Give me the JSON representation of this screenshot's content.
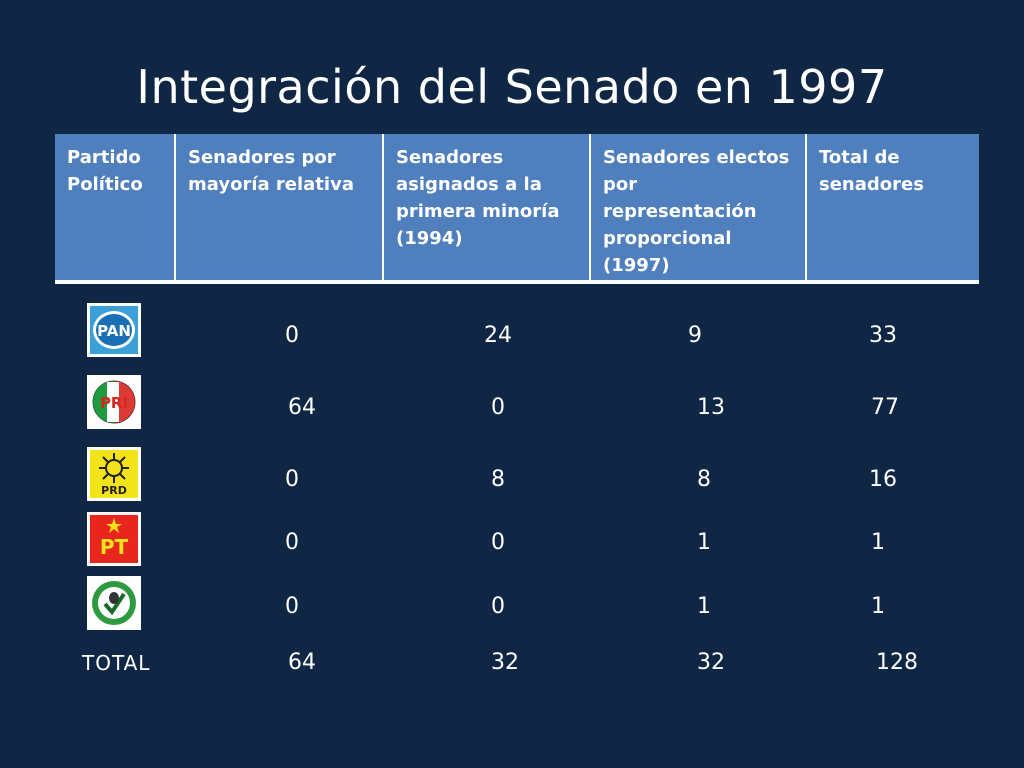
{
  "slide": {
    "title": "Integración del Senado en 1997"
  },
  "table": {
    "headers": [
      "Partido Político",
      "Senadores por mayoría relativa",
      "Senadores asignados a la primera minoría (1994)",
      "Senadores electos por representación proporcional (1997)",
      "Total de senadores"
    ],
    "rows": [
      {
        "party_logo": "pan-logo",
        "logo_text": "PAN",
        "values": [
          "0",
          "24",
          "9",
          "33"
        ]
      },
      {
        "party_logo": "pri-logo",
        "logo_text": "PRI",
        "values": [
          "64",
          "0",
          "13",
          "77"
        ]
      },
      {
        "party_logo": "prd-logo",
        "logo_text": "PRD",
        "values": [
          "0",
          "8",
          "8",
          "16"
        ]
      },
      {
        "party_logo": "pt-logo",
        "logo_text": "PT",
        "values": [
          "0",
          "0",
          "1",
          "1"
        ]
      },
      {
        "party_logo": "pvem-logo",
        "logo_text": "",
        "values": [
          "0",
          "0",
          "1",
          "1"
        ]
      }
    ],
    "total": {
      "label": "TOTAL",
      "values": [
        "64",
        "32",
        "32",
        "128"
      ]
    }
  }
}
